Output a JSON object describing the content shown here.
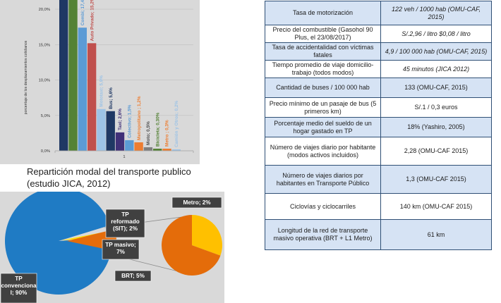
{
  "bar_chart": {
    "caption": "Repartición modal del transporte publico (estudio JICA, 2012)",
    "colors": {
      "background": "#d9d9d9",
      "navy": "#1f3864",
      "green": "#548235",
      "blue": "#5b9bd5",
      "red": "#c0504d",
      "light_blue": "#9dc3e6",
      "purple": "#403078",
      "orange": "#ed7d31",
      "gray": "#7f7f7f"
    }
  },
  "chart_data": [
    {
      "type": "bar",
      "ylabel": "porcentaje de los desplazamientos cotidianos",
      "xlabel": "",
      "categories": [
        "1"
      ],
      "ylim": [
        0,
        22.5
      ],
      "yticks": [
        "0,0%",
        "5,0%",
        "10,0%",
        "15,0%",
        "20,0%"
      ],
      "ytick_values": [
        0,
        5,
        10,
        15,
        20
      ],
      "series": [
        {
          "name": "",
          "value": 25.0,
          "label": "",
          "color": "#1f3864"
        },
        {
          "name": "",
          "value": 25.0,
          "label": "",
          "color": "#548235"
        },
        {
          "name": "Combi",
          "value": 17.4,
          "label": "Combi; 17,4%",
          "color": "#5b9bd5"
        },
        {
          "name": "Auto Privado",
          "value": 15.2,
          "label": "Auto Privado; 15,2%",
          "color": "#c0504d"
        },
        {
          "name": "Mototaxi",
          "value": 5.9,
          "label": "Mototaxi; 5,9%",
          "color": "#9dc3e6"
        },
        {
          "name": "Bus",
          "value": 5.6,
          "label": "Bus; 5,6%",
          "color": "#1f3864"
        },
        {
          "name": "Taxi",
          "value": 2.6,
          "label": "Taxi; 2,6%",
          "color": "#403078"
        },
        {
          "name": "Colectivo",
          "value": 1.5,
          "label": "Colectivo; 1,5%",
          "color": "#5b9bd5"
        },
        {
          "name": "Metropolitano",
          "value": 1.2,
          "label": "Metropolitano ; 1,2%",
          "color": "#ed7d31"
        },
        {
          "name": "Moto",
          "value": 0.5,
          "label": "Moto; 0,5%",
          "color": "#7f7f7f"
        },
        {
          "name": "Bicicleta",
          "value": 0.3,
          "label": "Bicicleta; 0,30%",
          "color": "#548235"
        },
        {
          "name": "Metro",
          "value": 0.3,
          "label": "Metro ; 0,3%",
          "color": "#ed7d31"
        },
        {
          "name": "Camión y Otros",
          "value": 0.2,
          "label": "Camión y Otros; 0,2%",
          "color": "#9dc3e6"
        }
      ]
    },
    {
      "type": "pie",
      "slices": [
        {
          "name": "TP convencional",
          "value": 90,
          "label_lines": [
            "TP",
            "convenciona",
            "l; 90%"
          ],
          "color": "#1f7bc4"
        },
        {
          "name": "Metro",
          "value": 2,
          "label_lines": [
            "Metro; 2%"
          ],
          "color": "#ffe000"
        },
        {
          "name": "TP reformado (SIT)",
          "value": 2,
          "label_lines": [
            "TP",
            "reformado",
            "(SIT); 2%"
          ],
          "color": "#ffe000"
        },
        {
          "name": "TP masivo",
          "value": 7,
          "label_lines": [
            "TP masivo;",
            "7%"
          ],
          "color": "#e46c0a"
        },
        {
          "name": "BRT",
          "value": 5,
          "label_lines": [
            "BRT; 5%"
          ],
          "color": "#e46c0a"
        }
      ],
      "secondary_pie": [
        {
          "name": "Metro",
          "value": 2,
          "color": "#ffc000"
        },
        {
          "name": "BRT",
          "value": 5,
          "color": "#e46c0a"
        }
      ],
      "label_box_color": "#404040"
    }
  ],
  "table": {
    "rows": [
      {
        "label": "Tasa de motorización",
        "value": "122 veh / 1000 hab (OMU-CAF, 2015)",
        "value_italic": true
      },
      {
        "label": "Precio del combustible (Gasohol 90 Plus, el 23/08/2017)",
        "value": "S/.2,96 / litro $0,08 / litro",
        "value_italic": true
      },
      {
        "label": "Tasa de accidentalidad con víctimas fatales",
        "value": "4,9 / 100 000 hab (OMU-CAF, 2015)",
        "value_italic": true
      },
      {
        "label": "Tiempo promedio de viaje domicilio-trabajo (todos modos)",
        "value": "45 minutos (JICA 2012)",
        "value_italic": true
      },
      {
        "label": "Cantidad de buses / 100 000 hab",
        "value": "133 (OMU-CAF, 2015)",
        "value_italic": false
      },
      {
        "label": "Precio mínimo de un pasaje de bus (5 primeros km)",
        "value": "S/.1 / 0,3 euros",
        "value_italic": false
      },
      {
        "label": "Porcentaje medio del sueldo de un hogar gastado en TP",
        "value": "18% (Yashiro, 2005)",
        "value_italic": false
      },
      {
        "label": "Número de viajes diario por habitante (modos activos incluidos)",
        "value": "2,28 (OMU-CAF 2015)",
        "value_italic": false
      },
      {
        "label": "Número de viajes diarios por habitantes en Transporte Público",
        "value": "1,3 (OMU-CAF 2015)",
        "value_italic": false
      },
      {
        "label": "Ciclovías y ciclocarriles",
        "value": "140 km (OMU-CAF 2015)",
        "value_italic": false
      },
      {
        "label": "Longitud de la red de transporte masivo operativa (BRT + L1 Metro)",
        "value": "61 km",
        "value_italic": false
      }
    ],
    "border_color": "#2f4f75",
    "stripe_color": "#d6e3f4"
  }
}
